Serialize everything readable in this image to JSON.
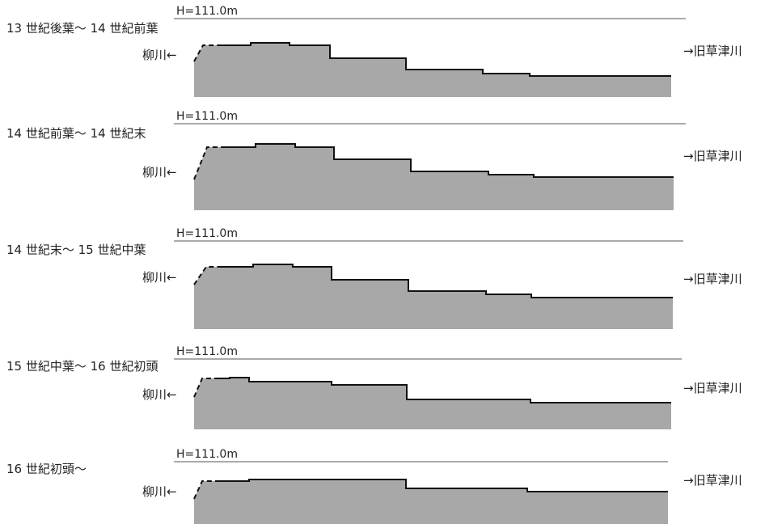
{
  "colors": {
    "ground_fill": "#a8a8a8",
    "line": "#111111",
    "text": "#222222"
  },
  "panels": [
    {
      "period": "13 世紀後葉～ 14 世紀前葉",
      "height_label": "H=111.0m",
      "left_river": "柳川←",
      "right_river": "→旧草津川"
    },
    {
      "period": "14 世紀前葉～ 14 世紀末",
      "height_label": "H=111.0m",
      "left_river": "柳川←",
      "right_river": "→旧草津川"
    },
    {
      "period": "14 世紀末～ 15 世紀中葉",
      "height_label": "H=111.0m",
      "left_river": "柳川←",
      "right_river": "→旧草津川"
    },
    {
      "period": "15 世紀中葉～ 16 世紀初頭",
      "height_label": "H=111.0m",
      "left_river": "柳川←",
      "right_river": "→旧草津川"
    },
    {
      "period": "16 世紀初頭～",
      "height_label": "H=111.0m",
      "left_river": "柳川←",
      "right_river": "→旧草津川"
    }
  ]
}
